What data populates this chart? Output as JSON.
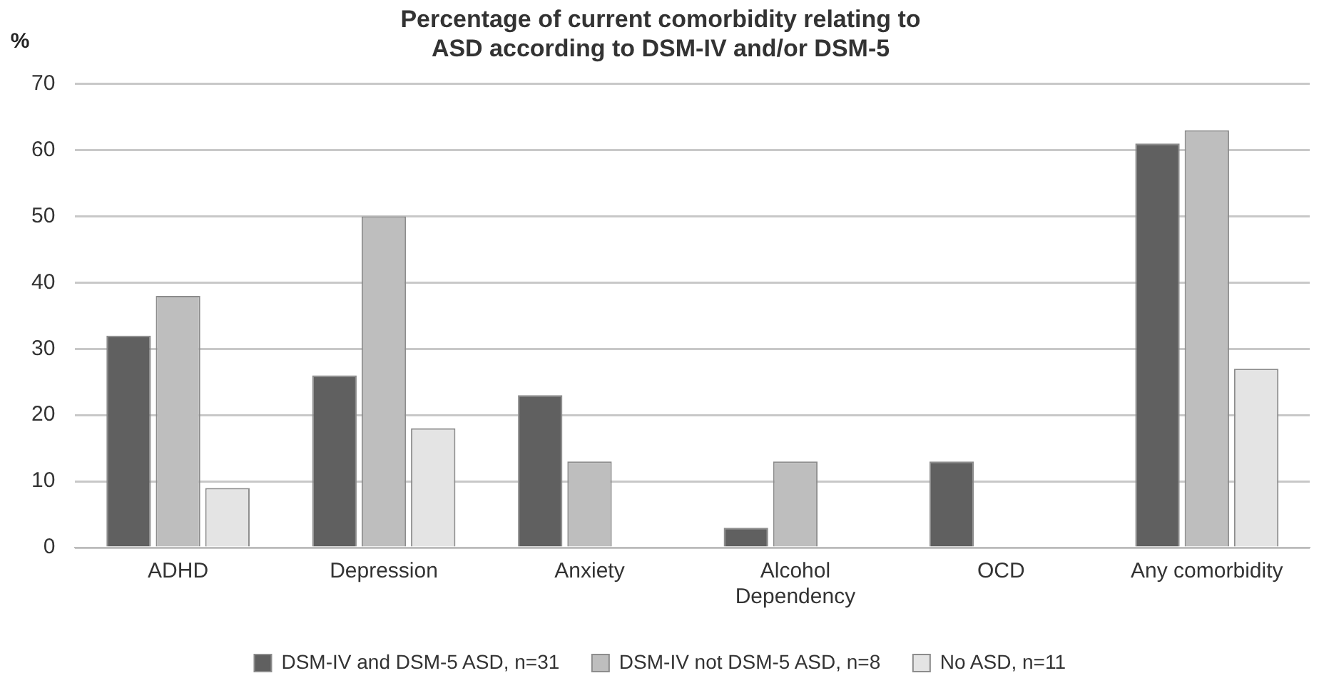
{
  "chart_data": {
    "type": "bar",
    "title": "Percentage of current comorbidity relating to\nASD according to DSM-IV and/or DSM-5",
    "ylabel": "%",
    "categories": [
      "ADHD",
      "Depression",
      "Anxiety",
      "Alcohol\nDependency",
      "OCD",
      "Any comorbidity"
    ],
    "series": [
      {
        "name": "DSM-IV and DSM-5 ASD, n=31",
        "color": "#606060",
        "values": [
          32,
          26,
          23,
          3,
          13,
          61
        ]
      },
      {
        "name": "DSM-IV not DSM-5 ASD, n=8",
        "color": "#bebebe",
        "values": [
          38,
          50,
          13,
          13,
          0,
          63
        ]
      },
      {
        "name": "No ASD, n=11",
        "color": "#e4e4e4",
        "values": [
          9,
          18,
          0,
          0,
          0,
          27
        ]
      }
    ],
    "ylim": [
      0,
      70
    ],
    "yticks": [
      0,
      10,
      20,
      30,
      40,
      50,
      60,
      70
    ],
    "grid": "y",
    "legend": "bottom"
  }
}
